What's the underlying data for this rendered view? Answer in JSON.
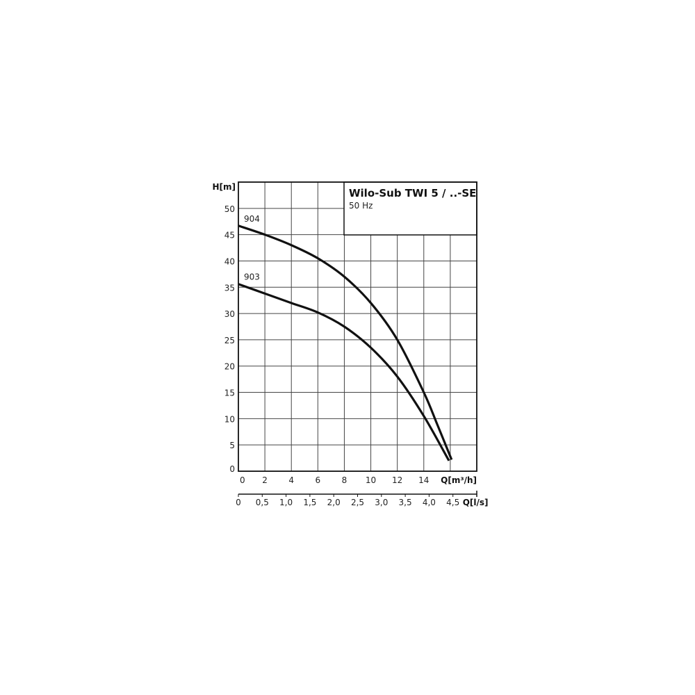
{
  "chart_data": {
    "type": "line",
    "title": "Wilo-Sub TWI 5 / ..-SE",
    "subtitle": "50 Hz",
    "xlabel": "Q[m³/h]",
    "ylabel": "H[m]",
    "x2label": "Q[l/s]",
    "xlim": [
      0,
      18
    ],
    "ylim": [
      0,
      55
    ],
    "x2lim": [
      0,
      5
    ],
    "grid": true,
    "xticks": [
      0,
      2,
      4,
      6,
      8,
      10,
      12,
      14
    ],
    "xtick_labels": [
      "0",
      "2",
      "4",
      "6",
      "8",
      "10",
      "12",
      "14"
    ],
    "yticks": [
      0,
      5,
      10,
      15,
      20,
      25,
      30,
      35,
      40,
      45,
      50
    ],
    "ytick_labels": [
      "0",
      "5",
      "10",
      "15",
      "20",
      "25",
      "30",
      "35",
      "40",
      "45",
      "50"
    ],
    "x2ticks": [
      0,
      0.5,
      1.0,
      1.5,
      2.0,
      2.5,
      3.0,
      3.5,
      4.0,
      4.5
    ],
    "x2tick_labels": [
      "0",
      "0,5",
      "1,0",
      "1,5",
      "2,0",
      "2,5",
      "3,0",
      "3,5",
      "4,0",
      "4,5"
    ],
    "series": [
      {
        "name": "904",
        "color": "#111111",
        "x": [
          0,
          2,
          4,
          6,
          8,
          10,
          12,
          14,
          15,
          16.1
        ],
        "y": [
          46.7,
          45,
          43,
          40.5,
          37,
          32,
          25,
          15,
          9,
          2.2
        ]
      },
      {
        "name": "903",
        "color": "#111111",
        "x": [
          0,
          2,
          4,
          6,
          8,
          10,
          12,
          14,
          15.9
        ],
        "y": [
          35.6,
          33.8,
          32,
          30.2,
          27.5,
          23.5,
          18,
          10.5,
          2
        ]
      }
    ]
  }
}
